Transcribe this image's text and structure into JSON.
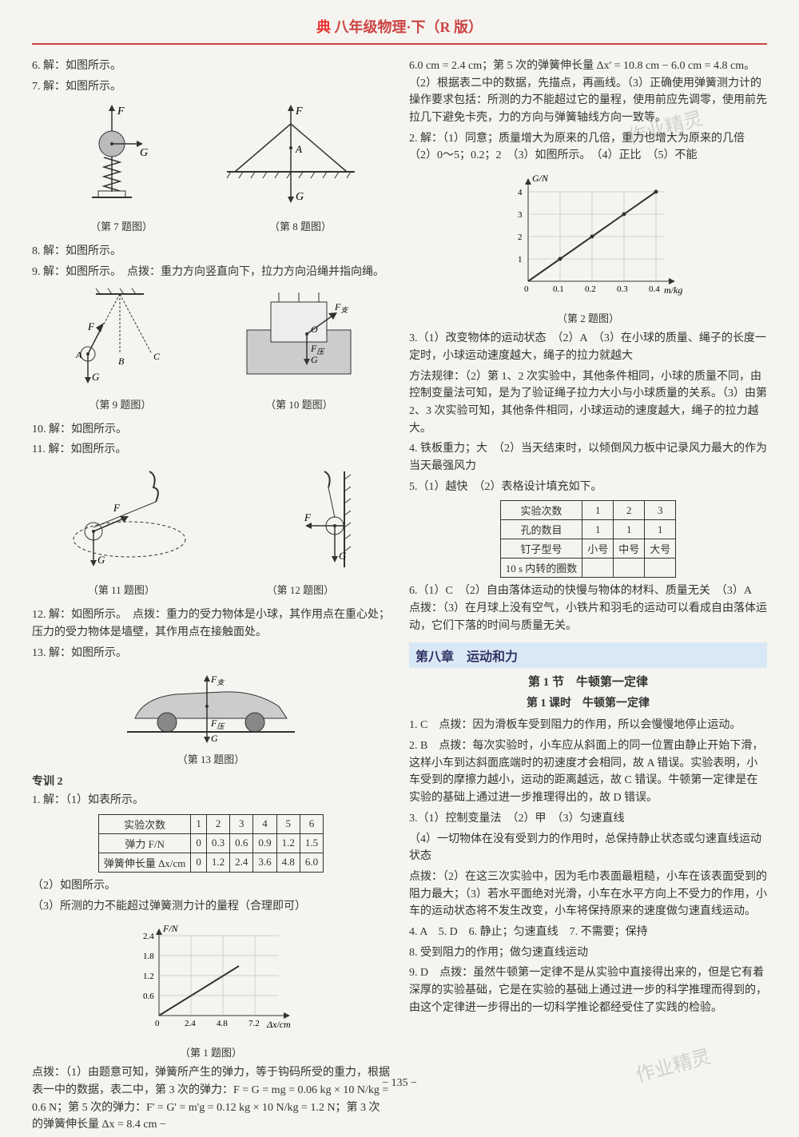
{
  "header": {
    "title": "八年级物理·下（R 版）",
    "logo": "典"
  },
  "left": {
    "q6": "6. 解：如图所示。",
    "q7": "7. 解：如图所示。",
    "cap7": "（第 7 题图）",
    "cap8": "（第 8 题图）",
    "q8": "8. 解：如图所示。",
    "q9": "9. 解：如图所示。　点拨：重力方向竖直向下，拉力方向沿绳并指向绳。",
    "cap9": "（第 9 题图）",
    "cap10": "（第 10 题图）",
    "q10": "10. 解：如图所示。",
    "q11": "11. 解：如图所示。",
    "cap11": "（第 11 题图）",
    "cap12": "（第 12 题图）",
    "q12": "12. 解：如图所示。　点拨：重力的受力物体是小球，其作用点在重心处；压力的受力物体是墙壁，其作用点在接触面处。",
    "q13": "13. 解：如图所示。",
    "cap13": "（第 13 题图）",
    "zx2": "专训 2",
    "z1": "1. 解：（1）如表所示。",
    "table1": {
      "headers": [
        "实验次数",
        "1",
        "2",
        "3",
        "4",
        "5",
        "6"
      ],
      "row1": [
        "弹力 F/N",
        "0",
        "0.3",
        "0.6",
        "0.9",
        "1.2",
        "1.5"
      ],
      "row2": [
        "弹簧伸长量 Δx/cm",
        "0",
        "1.2",
        "2.4",
        "3.6",
        "4.8",
        "6.0"
      ]
    },
    "z1b": "（2）如图所示。",
    "z1c": "（3）所测的力不能超过弹簧测力计的量程（合理即可）",
    "chart1": {
      "ylabel": "F/N",
      "xlabel": "Δx/cm",
      "yticks": [
        "0.6",
        "1.2",
        "1.8",
        "2.4"
      ],
      "xticks": [
        "2.4",
        "4.8",
        "7.2"
      ]
    },
    "cap1c": "（第 1 题图）",
    "z1d": "点拨：（1）由题意可知，弹簧所产生的弹力，等于钩码所受的重力，根据表一中的数据，表二中，第 3 次的弹力：F = G = mg = 0.06 kg × 10 N/kg = 0.6 N；第 5 次的弹力：F' = G' = m'g = 0.12 kg × 10 N/kg = 1.2 N；第 3 次的弹簧伸长量 Δx = 8.4 cm −"
  },
  "right": {
    "p1": "6.0 cm = 2.4 cm；第 5 次的弹簧伸长量 Δx' = 10.8 cm − 6.0 cm = 4.8 cm。（2）根据表二中的数据，先描点，再画线。（3）正确使用弹簧测力计的操作要求包括：所测的力不能超过它的量程，使用前应先调零，使用前先拉几下避免卡壳，力的方向与弹簧轴线方向一致等。",
    "q2": "2. 解：（1）同意；质量增大为原来的几倍，重力也增大为原来的几倍　（2）0～5；0.2；2　（3）如图所示。　（4）正比　（5）不能",
    "chart2": {
      "ylabel": "G/N",
      "xlabel": "m/kg",
      "yticks": [
        "1",
        "2",
        "3",
        "4"
      ],
      "xticks": [
        "0.1",
        "0.2",
        "0.3",
        "0.4"
      ]
    },
    "cap2": "（第 2 题图）",
    "q3": "3.（1）改变物体的运动状态　（2）A　（3）在小球的质量、绳子的长度一定时，小球运动速度越大，绳子的拉力就越大",
    "q3b": "方法规律：（2）第 1、2 次实验中，其他条件相同，小球的质量不同，由控制变量法可知，是为了验证绳子拉力大小与小球质量的关系。（3）由第 2、3 次实验可知，其他条件相同，小球运动的速度越大，绳子的拉力越大。",
    "q4": "4. 铁板重力；大　（2）当天结束时，以倾倒风力板中记录风力最大的作为当天最强风力",
    "q5": "5.（1）越快　（2）表格设计填充如下。",
    "table2": {
      "rows": [
        [
          "实验次数",
          "1",
          "2",
          "3"
        ],
        [
          "孔的数目",
          "1",
          "1",
          "1"
        ],
        [
          "钉子型号",
          "小号",
          "中号",
          "大号"
        ],
        [
          "10 s 内转的圈数",
          "",
          "",
          ""
        ]
      ]
    },
    "q6r": "6.（1）C　（2）自由落体运动的快慢与物体的材料、质量无关　（3）A　点拨：（3）在月球上没有空气，小铁片和羽毛的运动可以看成自由落体运动，它们下落的时间与质量无关。",
    "chapter": "第八章　运动和力",
    "section": "第 1 节　牛顿第一定律",
    "lesson": "第 1 课时　牛顿第一定律",
    "r1": "1. C　点拨：因为滑板车受到阻力的作用，所以会慢慢地停止运动。",
    "r2": "2. B　点拨：每次实验时，小车应从斜面上的同一位置由静止开始下滑，这样小车到达斜面底端时的初速度才会相同，故 A 错误。实验表明，小车受到的摩擦力越小，运动的距离越远，故 C 错误。牛顿第一定律是在实验的基础上通过进一步推理得出的，故 D 错误。",
    "r3": "3.（1）控制变量法　（2）甲　（3）匀速直线",
    "r3b": "（4）一切物体在没有受到力的作用时，总保持静止状态或匀速直线运动状态",
    "r3c": "点拨：（2）在这三次实验中，因为毛巾表面最粗糙，小车在该表面受到的阻力最大；（3）若水平面绝对光滑，小车在水平方向上不受力的作用，小车的运动状态将不发生改变，小车将保持原来的速度做匀速直线运动。",
    "r4": "4. A　5. D　6. 静止；匀速直线　7. 不需要；保持",
    "r8": "8. 受到阻力的作用；做匀速直线运动",
    "r9": "9. D　点拨：虽然牛顿第一定律不是从实验中直接得出来的，但是它有着深厚的实验基础，它是在实验的基础上通过进一步的科学推理而得到的，由这个定律进一步得出的一切科学推论都经受住了实践的检验。"
  },
  "page": "− 135 −",
  "watermark": "作业精灵"
}
